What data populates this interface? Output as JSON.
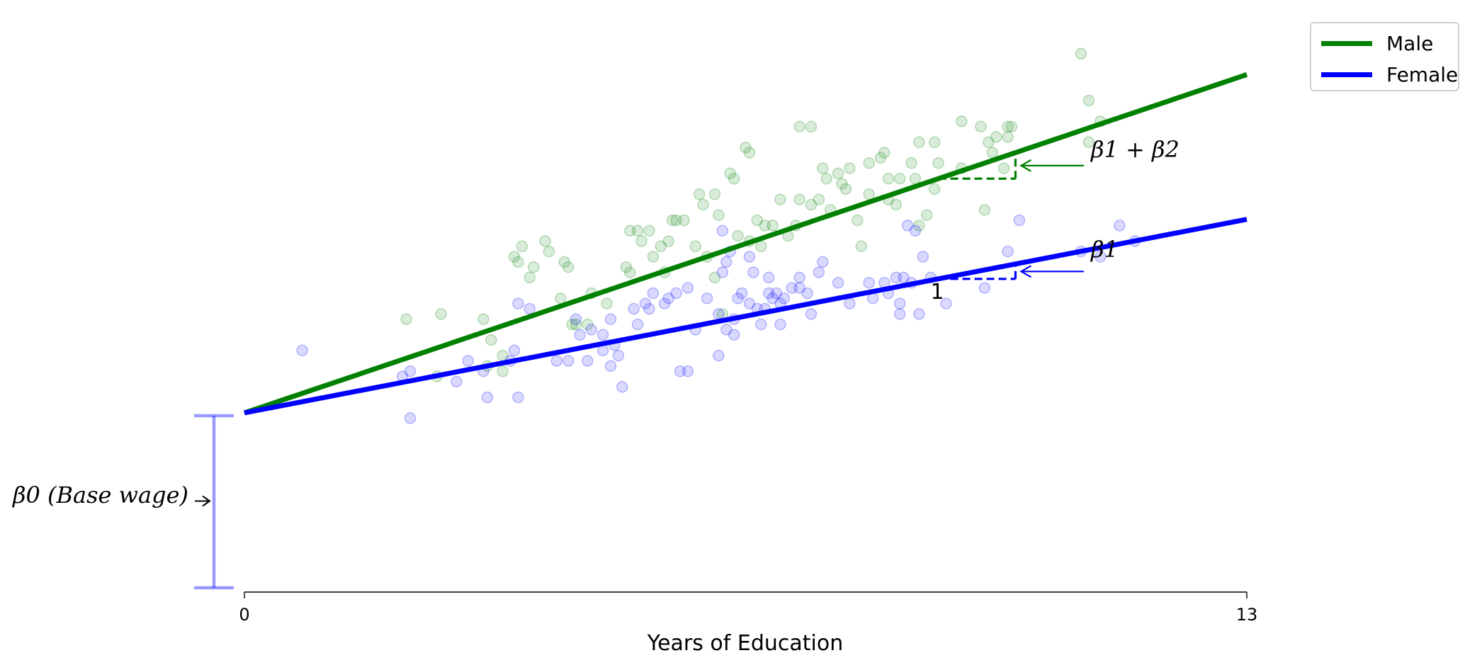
{
  "chart_data": {
    "type": "scatter",
    "title": "",
    "xlabel": "Years of Education",
    "ylabel": "",
    "xlim": [
      0,
      13
    ],
    "ylim": [
      -1.7,
      3.65
    ],
    "x_ticks": [
      "0",
      "13"
    ],
    "grid": false,
    "legend_position": "top-right",
    "series": [
      {
        "name": "Male",
        "kind": "line",
        "color": "#008000",
        "intercept": 0,
        "slope": 0.25,
        "x": [
          0,
          13
        ]
      },
      {
        "name": "Female",
        "kind": "line",
        "color": "#0000ff",
        "intercept": 0,
        "slope": 0.143,
        "x": [
          0,
          13
        ]
      },
      {
        "name": "Male",
        "kind": "scatter",
        "color": "#008000",
        "points": [
          [
            2.1,
            0.9
          ],
          [
            2.55,
            0.95
          ],
          [
            3.1,
            0.9
          ],
          [
            3.2,
            0.7
          ],
          [
            3.15,
            0.45
          ],
          [
            3.35,
            0.55
          ],
          [
            3.35,
            0.4
          ],
          [
            2.5,
            0.35
          ],
          [
            3.5,
            1.5
          ],
          [
            3.6,
            1.6
          ],
          [
            3.55,
            1.45
          ],
          [
            3.7,
            1.3
          ],
          [
            3.9,
            1.65
          ],
          [
            3.95,
            1.55
          ],
          [
            3.75,
            1.4
          ],
          [
            4.15,
            1.45
          ],
          [
            4.2,
            1.4
          ],
          [
            4.1,
            1.1
          ],
          [
            4.25,
            0.85
          ],
          [
            4.3,
            0.85
          ],
          [
            4.45,
            0.85
          ],
          [
            4.5,
            1.15
          ],
          [
            4.7,
            1.05
          ],
          [
            4.95,
            1.4
          ],
          [
            5.0,
            1.35
          ],
          [
            5.1,
            1.75
          ],
          [
            5.0,
            1.75
          ],
          [
            5.15,
            1.65
          ],
          [
            5.25,
            1.75
          ],
          [
            5.4,
            1.6
          ],
          [
            5.5,
            1.65
          ],
          [
            5.3,
            1.5
          ],
          [
            5.45,
            1.35
          ],
          [
            5.55,
            1.85
          ],
          [
            5.6,
            1.85
          ],
          [
            5.7,
            1.85
          ],
          [
            5.85,
            1.6
          ],
          [
            6.0,
            1.5
          ],
          [
            6.1,
            1.3
          ],
          [
            6.2,
            0.95
          ],
          [
            5.9,
            2.1
          ],
          [
            5.95,
            2.0
          ],
          [
            6.1,
            2.1
          ],
          [
            6.15,
            1.9
          ],
          [
            6.3,
            2.3
          ],
          [
            6.5,
            2.55
          ],
          [
            6.55,
            2.5
          ],
          [
            6.35,
            2.25
          ],
          [
            6.4,
            1.7
          ],
          [
            6.65,
            1.85
          ],
          [
            6.75,
            1.8
          ],
          [
            6.85,
            1.8
          ],
          [
            7.05,
            1.7
          ],
          [
            7.15,
            1.8
          ],
          [
            6.55,
            1.65
          ],
          [
            6.7,
            1.6
          ],
          [
            6.95,
            2.05
          ],
          [
            7.2,
            2.05
          ],
          [
            7.35,
            2.0
          ],
          [
            7.45,
            2.05
          ],
          [
            7.6,
            1.95
          ],
          [
            7.8,
            2.15
          ],
          [
            7.55,
            2.25
          ],
          [
            7.5,
            2.35
          ],
          [
            7.7,
            2.3
          ],
          [
            7.75,
            2.2
          ],
          [
            7.85,
            2.35
          ],
          [
            8.1,
            2.4
          ],
          [
            8.25,
            2.45
          ],
          [
            8.35,
            2.05
          ],
          [
            8.45,
            2.0
          ],
          [
            7.95,
            1.85
          ],
          [
            7.2,
            2.75
          ],
          [
            7.35,
            2.75
          ],
          [
            8.0,
            1.6
          ],
          [
            8.35,
            2.25
          ],
          [
            8.95,
            2.15
          ],
          [
            9.3,
            2.8
          ],
          [
            9.55,
            2.75
          ],
          [
            9.9,
            2.65
          ],
          [
            9.95,
            2.75
          ],
          [
            9.75,
            2.65
          ],
          [
            9.85,
            2.35
          ],
          [
            9.6,
            1.95
          ],
          [
            8.85,
            1.9
          ],
          [
            8.75,
            1.8
          ],
          [
            8.7,
            2.25
          ],
          [
            8.65,
            2.4
          ],
          [
            8.75,
            2.6
          ],
          [
            8.95,
            2.6
          ],
          [
            9.0,
            2.4
          ],
          [
            9.9,
            2.75
          ],
          [
            9.7,
            2.5
          ],
          [
            9.65,
            2.6
          ],
          [
            11.1,
            2.8
          ],
          [
            10.95,
            2.6
          ],
          [
            10.85,
            3.45
          ],
          [
            10.95,
            3.0
          ],
          [
            8.3,
            2.5
          ],
          [
            8.5,
            2.25
          ],
          [
            8.1,
            2.1
          ],
          [
            9.3,
            2.35
          ]
        ]
      },
      {
        "name": "Female",
        "kind": "scatter",
        "color": "#0000ff",
        "points": [
          [
            0.75,
            0.6
          ],
          [
            2.05,
            0.35
          ],
          [
            2.15,
            0.4
          ],
          [
            2.15,
            -0.05
          ],
          [
            2.75,
            0.3
          ],
          [
            2.9,
            0.5
          ],
          [
            3.1,
            0.4
          ],
          [
            3.15,
            0.15
          ],
          [
            3.45,
            0.5
          ],
          [
            3.5,
            0.6
          ],
          [
            3.55,
            0.15
          ],
          [
            3.7,
            1.0
          ],
          [
            3.55,
            1.05
          ],
          [
            4.05,
            0.5
          ],
          [
            4.2,
            0.5
          ],
          [
            4.45,
            0.5
          ],
          [
            4.35,
            0.75
          ],
          [
            4.3,
            0.9
          ],
          [
            4.5,
            0.8
          ],
          [
            4.65,
            0.75
          ],
          [
            4.75,
            0.9
          ],
          [
            4.65,
            0.6
          ],
          [
            4.8,
            0.65
          ],
          [
            4.75,
            0.45
          ],
          [
            4.9,
            0.25
          ],
          [
            4.85,
            0.55
          ],
          [
            5.2,
            1.05
          ],
          [
            5.3,
            1.15
          ],
          [
            5.05,
            1.0
          ],
          [
            5.5,
            1.1
          ],
          [
            5.45,
            1.05
          ],
          [
            5.6,
            1.15
          ],
          [
            5.75,
            1.2
          ],
          [
            5.85,
            0.8
          ],
          [
            5.75,
            0.4
          ],
          [
            6.0,
            1.1
          ],
          [
            6.2,
            1.35
          ],
          [
            6.25,
            1.45
          ],
          [
            6.2,
            1.75
          ],
          [
            6.3,
            1.55
          ],
          [
            6.25,
            0.8
          ],
          [
            6.15,
            0.95
          ],
          [
            6.35,
            0.75
          ],
          [
            6.15,
            0.55
          ],
          [
            6.35,
            0.9
          ],
          [
            6.55,
            1.05
          ],
          [
            6.45,
            1.15
          ],
          [
            6.55,
            1.5
          ],
          [
            6.6,
            1.35
          ],
          [
            6.8,
            1.3
          ],
          [
            6.65,
            1.0
          ],
          [
            6.75,
            1.0
          ],
          [
            6.85,
            1.1
          ],
          [
            6.95,
            1.05
          ],
          [
            6.9,
            1.15
          ],
          [
            6.95,
            0.85
          ],
          [
            7.1,
            1.2
          ],
          [
            7.2,
            1.3
          ],
          [
            7.45,
            1.35
          ],
          [
            7.35,
            0.95
          ],
          [
            7.5,
            1.45
          ],
          [
            7.7,
            1.25
          ],
          [
            7.85,
            1.05
          ],
          [
            8.1,
            1.25
          ],
          [
            8.3,
            1.25
          ],
          [
            8.45,
            1.3
          ],
          [
            8.5,
            1.05
          ],
          [
            8.5,
            0.95
          ],
          [
            8.75,
            0.95
          ],
          [
            8.9,
            1.3
          ],
          [
            8.6,
            1.8
          ],
          [
            8.7,
            1.75
          ],
          [
            8.8,
            1.5
          ],
          [
            9.1,
            1.05
          ],
          [
            8.55,
            1.3
          ],
          [
            8.65,
            1.25
          ],
          [
            9.6,
            1.2
          ],
          [
            10.05,
            1.85
          ],
          [
            9.9,
            1.55
          ],
          [
            10.85,
            1.55
          ],
          [
            11.1,
            1.5
          ],
          [
            11.35,
            1.8
          ],
          [
            11.55,
            1.65
          ],
          [
            6.7,
            0.85
          ],
          [
            7.0,
            1.1
          ],
          [
            6.8,
            1.15
          ],
          [
            6.4,
            1.1
          ],
          [
            5.65,
            0.4
          ],
          [
            7.2,
            1.2
          ],
          [
            7.3,
            1.15
          ],
          [
            8.15,
            1.1
          ],
          [
            8.35,
            1.15
          ],
          [
            5.1,
            0.85
          ],
          [
            5.25,
            1.0
          ]
        ]
      }
    ],
    "annotations": {
      "male_slope": "β1 + β2",
      "female_slope": "β1",
      "run": "1",
      "intercept": "β0 (Base wage)"
    }
  },
  "legend": {
    "male_label": "Male",
    "female_label": "Female",
    "male_color": "#008000",
    "female_color": "#0000ff"
  }
}
